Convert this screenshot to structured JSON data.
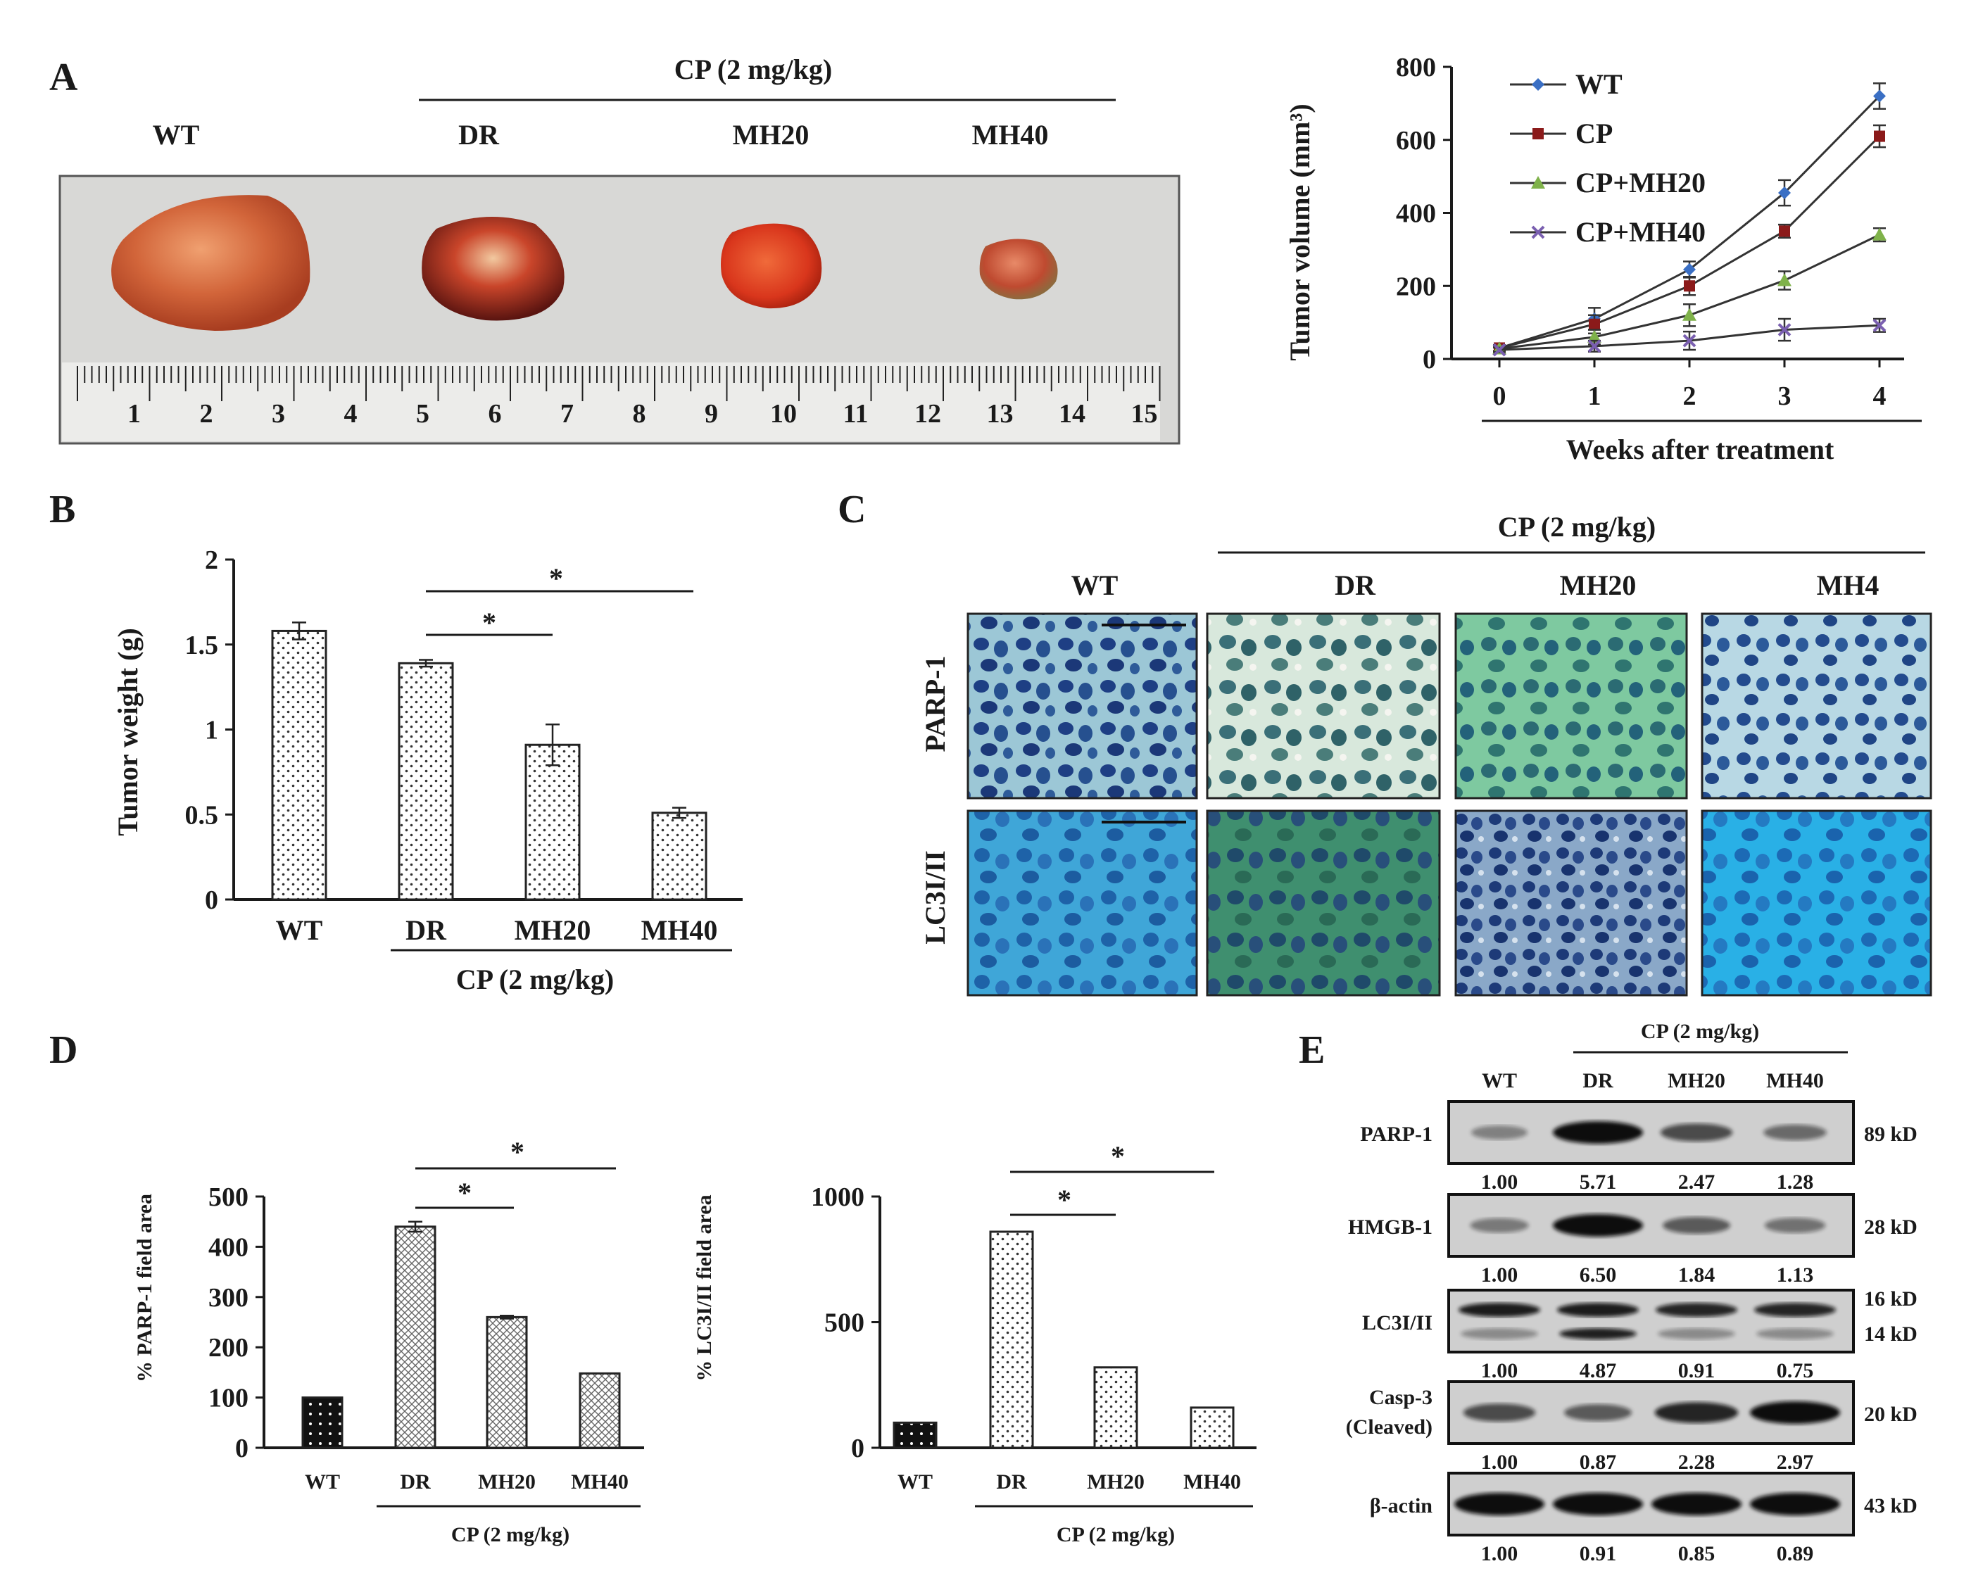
{
  "panels": {
    "A": {
      "label": "A",
      "cp_header": "CP (2 mg/kg)",
      "groups": [
        "WT",
        "DR",
        "MH20",
        "MH40"
      ],
      "ruler_numbers": [
        "1",
        "2",
        "3",
        "4",
        "5",
        "6",
        "7",
        "8",
        "9",
        "10",
        "11",
        "12",
        "13",
        "14",
        "15"
      ]
    },
    "B": {
      "label": "B",
      "cp_footer": "CP (2 mg/kg)",
      "sig": [
        "*",
        "*"
      ]
    },
    "C": {
      "label": "C",
      "cp_header": "CP (2 mg/kg)",
      "columns": [
        "WT",
        "DR",
        "MH20",
        "MH4"
      ],
      "rows": [
        "PARP-1",
        "LC3I/II"
      ]
    },
    "D": {
      "label": "D",
      "cp_footer": "CP (2 mg/kg)",
      "sig": [
        "*",
        "*"
      ]
    },
    "E": {
      "label": "E",
      "cp_header": "CP (2 mg/kg)",
      "columns": [
        "WT",
        "DR",
        "MH20",
        "MH40"
      ],
      "blots": [
        {
          "name": "PARP-1",
          "size": "89 kD",
          "values": [
            "1.00",
            "5.71",
            "2.47",
            "1.28"
          ],
          "intensity": [
            0.25,
            1.0,
            0.6,
            0.4
          ]
        },
        {
          "name": "HMGB-1",
          "size": "28 kD",
          "values": [
            "1.00",
            "6.50",
            "1.84",
            "1.13"
          ],
          "intensity": [
            0.3,
            1.0,
            0.5,
            0.35
          ]
        },
        {
          "name": "LC3I/II",
          "size": "16 kD",
          "size2": "14 kD",
          "values": [
            "1.00",
            "4.87",
            "0.91",
            "0.75"
          ],
          "intensity": [
            0.9,
            0.9,
            0.85,
            0.85
          ]
        },
        {
          "name": "Casp-3",
          "name2": "(Cleaved)",
          "size": "20 kD",
          "values": [
            "1.00",
            "0.87",
            "2.28",
            "2.97"
          ],
          "intensity": [
            0.6,
            0.5,
            0.85,
            1.0
          ]
        },
        {
          "name": "β-actin",
          "size": "43 kD",
          "values": [
            "1.00",
            "0.91",
            "0.85",
            "0.89"
          ],
          "intensity": [
            1.0,
            1.0,
            1.0,
            1.0
          ]
        }
      ]
    }
  },
  "chart_data": [
    {
      "id": "tumor-volume",
      "type": "line",
      "xlabel": "Weeks after treatment",
      "ylabel": "Tumor volume (mm³)",
      "x": [
        0,
        1,
        2,
        3,
        4
      ],
      "ylim": [
        0,
        800
      ],
      "yticks": [
        0,
        200,
        400,
        600,
        800
      ],
      "series": [
        {
          "name": "WT",
          "values": [
            30,
            110,
            245,
            455,
            720
          ],
          "errors": [
            8,
            30,
            22,
            35,
            35
          ],
          "color": "#3a6fc4",
          "marker": "diamond"
        },
        {
          "name": "CP",
          "values": [
            30,
            95,
            200,
            350,
            610
          ],
          "errors": [
            8,
            25,
            25,
            18,
            30
          ],
          "color": "#8b1a1a",
          "marker": "square"
        },
        {
          "name": "CP+MH20",
          "values": [
            28,
            60,
            120,
            215,
            340
          ],
          "errors": [
            8,
            20,
            30,
            25,
            18
          ],
          "color": "#7fb24a",
          "marker": "triangle"
        },
        {
          "name": "CP+MH40",
          "values": [
            25,
            35,
            50,
            80,
            92
          ],
          "errors": [
            6,
            15,
            25,
            30,
            18
          ],
          "color": "#7a5fb0",
          "marker": "x"
        }
      ]
    },
    {
      "id": "tumor-weight",
      "type": "bar",
      "ylabel": "Tumor weight (g)",
      "categories": [
        "WT",
        "DR",
        "MH20",
        "MH40"
      ],
      "values": [
        1.58,
        1.39,
        0.91,
        0.51
      ],
      "errors": [
        0.05,
        0.02,
        0.12,
        0.03
      ],
      "ylim": [
        0,
        2
      ],
      "yticks": [
        0,
        0.5,
        1,
        1.5,
        2
      ],
      "ytick_labels": [
        "0",
        "0.5",
        "1",
        "1.5",
        "2"
      ]
    },
    {
      "id": "parp1-area",
      "type": "bar",
      "ylabel": "% PARP-1 field area",
      "categories": [
        "WT",
        "DR",
        "MH20",
        "MH40"
      ],
      "values": [
        100,
        440,
        260,
        148
      ],
      "errors": [
        0,
        10,
        3,
        0
      ],
      "ylim": [
        0,
        500
      ],
      "yticks": [
        0,
        100,
        200,
        300,
        400,
        500
      ]
    },
    {
      "id": "lc3-area",
      "type": "bar",
      "ylabel": "% LC3I/II field area",
      "categories": [
        "WT",
        "DR",
        "MH20",
        "MH40"
      ],
      "values": [
        100,
        860,
        320,
        160
      ],
      "errors": [
        0,
        0,
        0,
        0
      ],
      "ylim": [
        0,
        1000
      ],
      "yticks": [
        0,
        500,
        1000
      ]
    }
  ]
}
